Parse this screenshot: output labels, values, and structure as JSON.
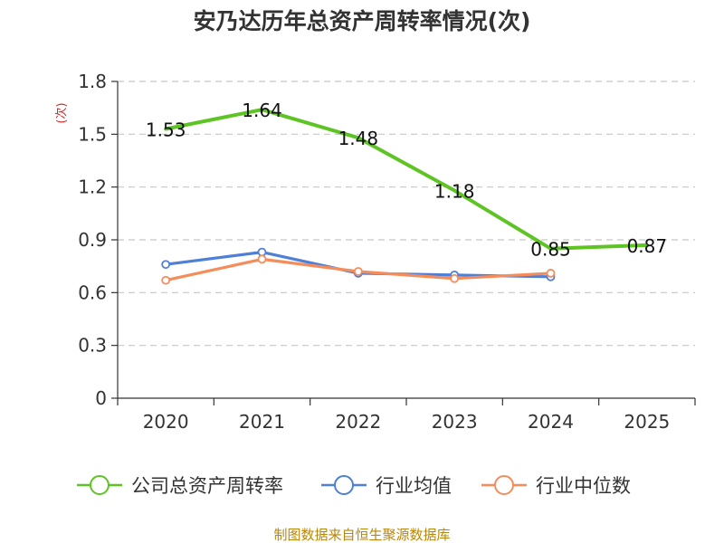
{
  "chart_data": {
    "type": "line",
    "title": "安乃达历年总资产周转率情况(次)",
    "ylabel": "(次)",
    "xlabel": "",
    "categories": [
      "2020",
      "2021",
      "2022",
      "2023",
      "2024",
      "2025"
    ],
    "ylim": [
      0,
      1.8
    ],
    "yticks": [
      "0",
      "0.3",
      "0.6",
      "0.9",
      "1.2",
      "1.5",
      "1.8"
    ],
    "ytick_values": [
      0,
      0.3,
      0.6,
      0.9,
      1.2,
      1.5,
      1.8
    ],
    "grid": true,
    "legend_position": "bottom",
    "series": [
      {
        "name": "公司总资产周转率",
        "color": "#5ec424",
        "values": [
          1.53,
          1.64,
          1.48,
          1.18,
          0.85,
          0.87
        ],
        "data_labels": [
          "1.53",
          "1.64",
          "1.48",
          "1.18",
          "0.85",
          "0.87"
        ],
        "markers": false
      },
      {
        "name": "行业均值",
        "color": "#4f7fd6",
        "values": [
          0.76,
          0.83,
          0.71,
          0.7,
          0.69,
          null
        ],
        "markers": true
      },
      {
        "name": "行业中位数",
        "color": "#f58d5b",
        "values": [
          0.67,
          0.79,
          0.72,
          0.68,
          0.71,
          null
        ],
        "markers": true
      }
    ],
    "source": "制图数据来自恒生聚源数据库"
  }
}
